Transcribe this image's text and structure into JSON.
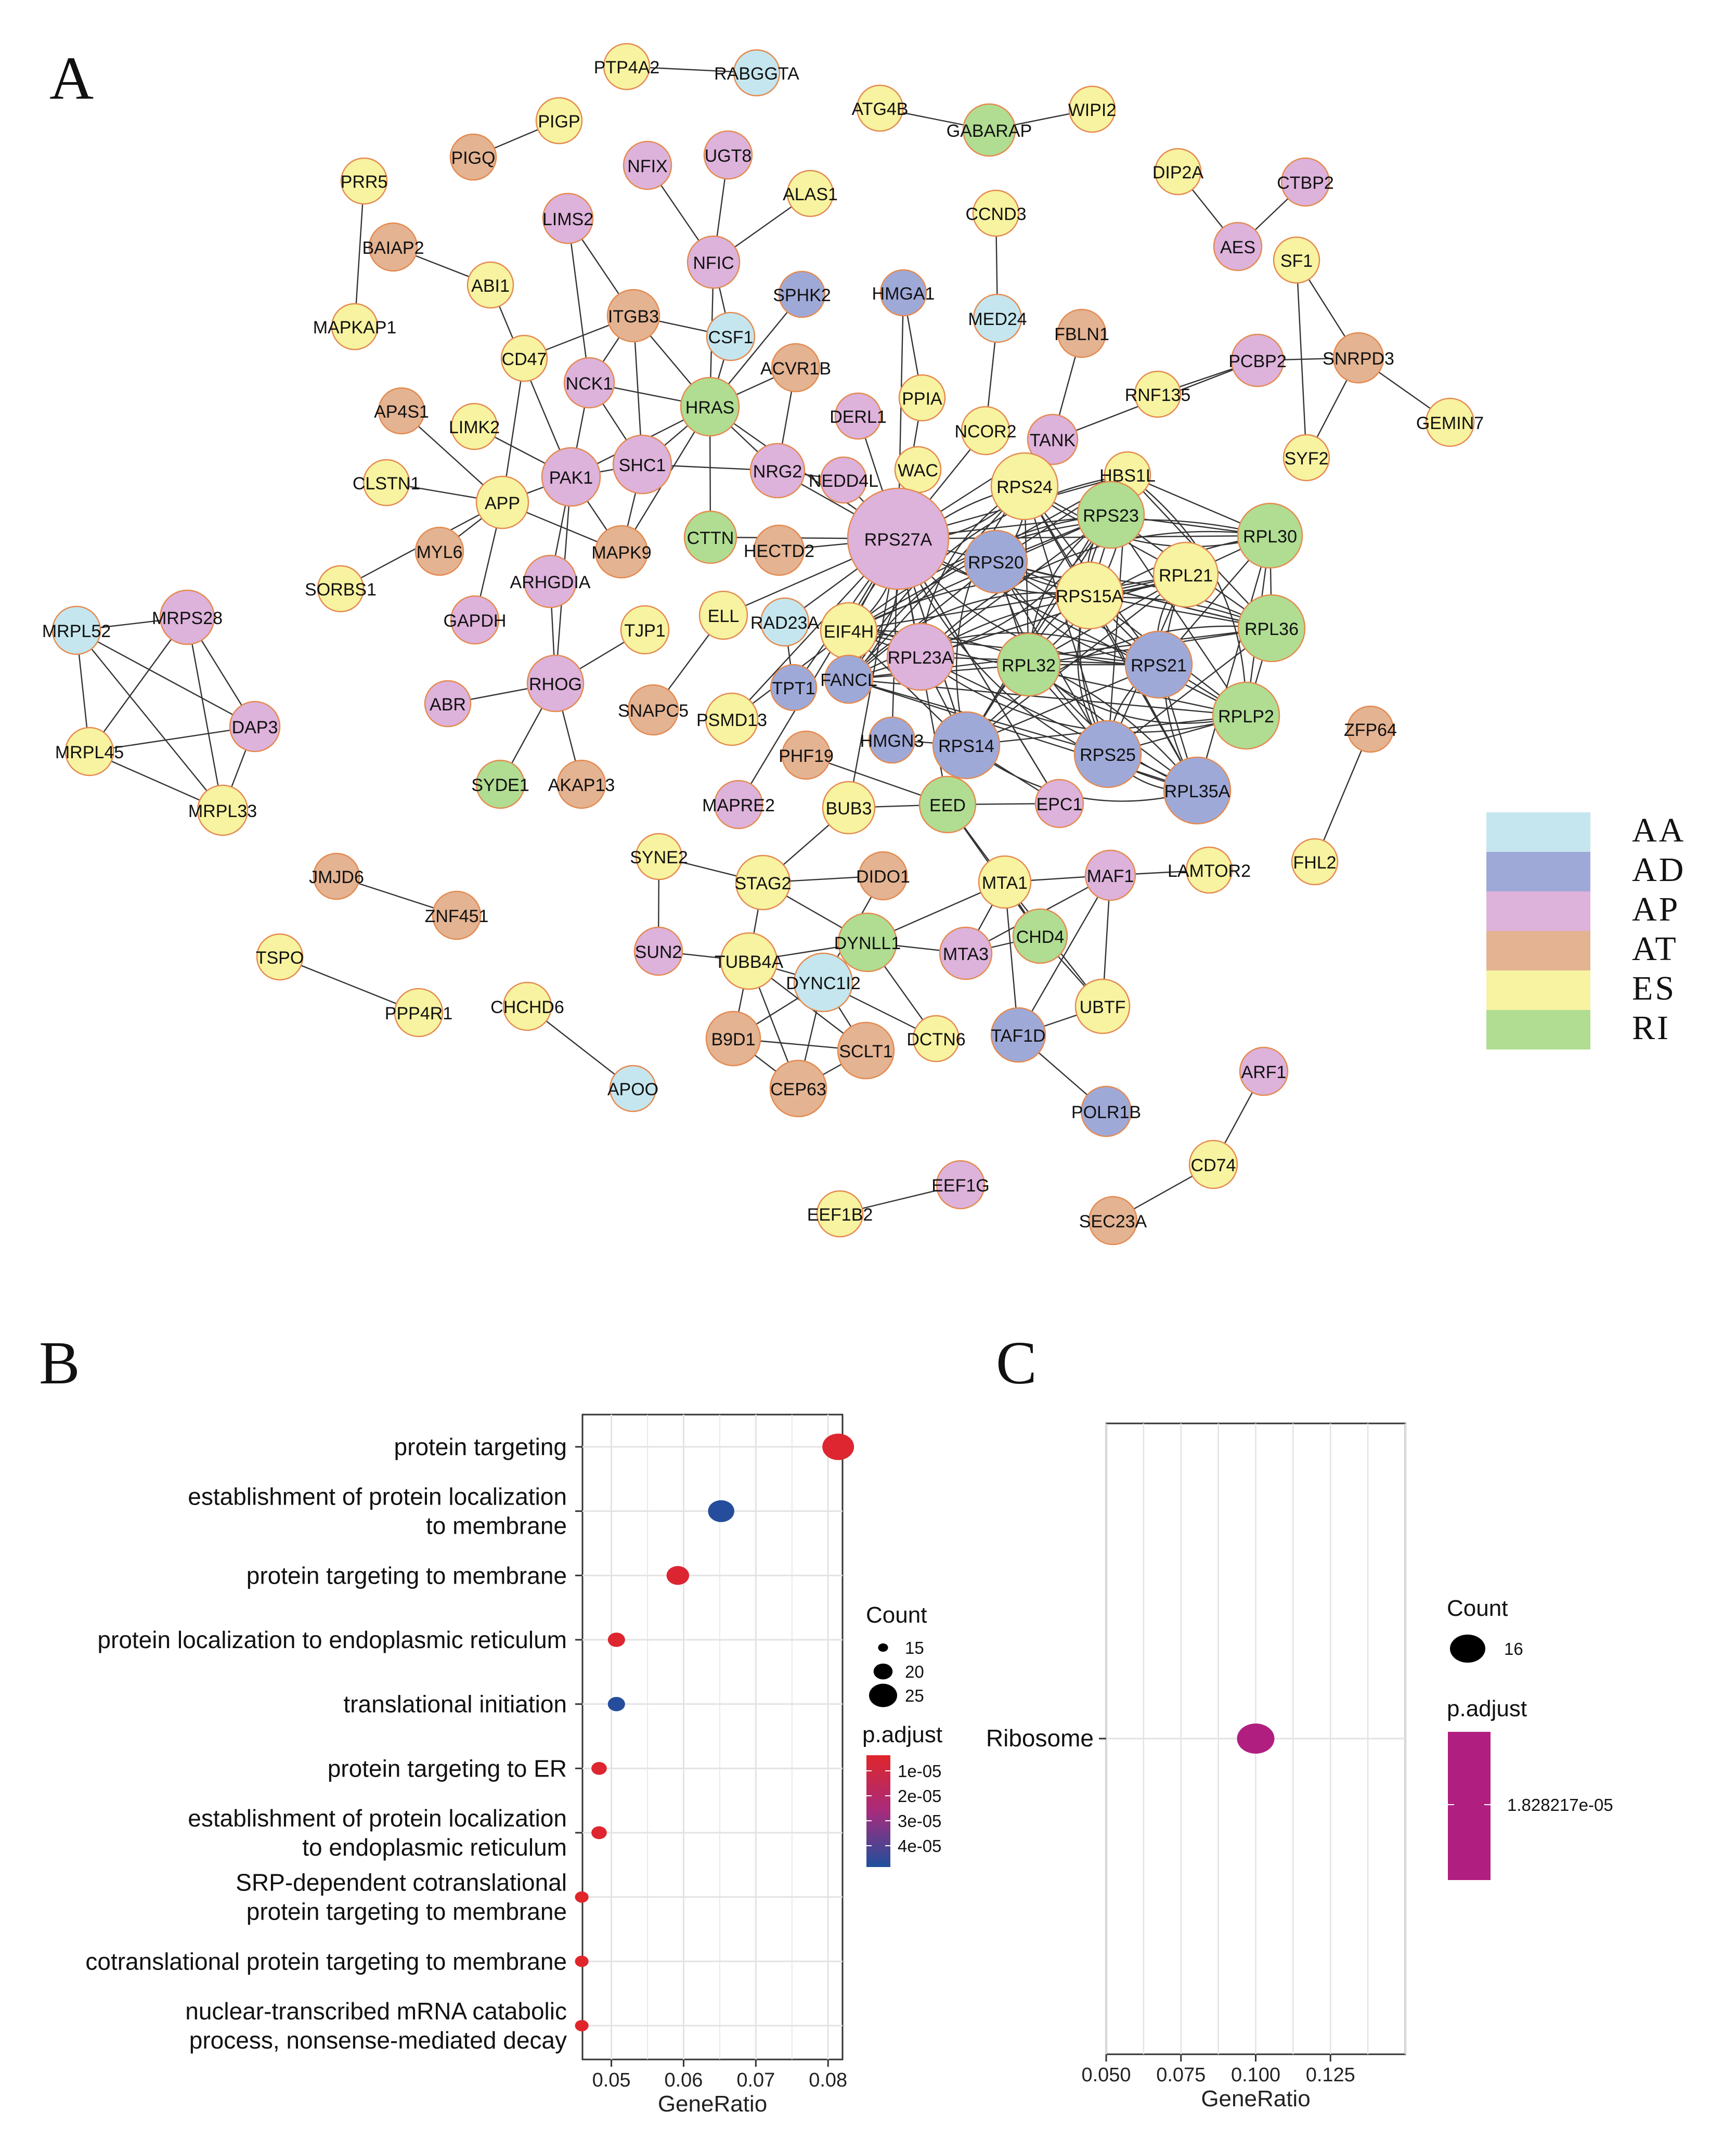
{
  "colors": {
    "AA": "#c5e6ee",
    "AD": "#9fa9d8",
    "AP": "#ddb2db",
    "AT": "#e3b392",
    "ES": "#f7f3a0",
    "RI": "#b0dd92",
    "node_stroke": "#e58a4f",
    "edge": "#333333",
    "pval_high": "#e0262b",
    "pval_mid": "#a72b7c",
    "pval_low": "#1f4f9c",
    "kegg_dot": "#b01f80",
    "grid": "#e3e3e3",
    "panel_border": "#333333"
  },
  "panel_letters": {
    "a": "A",
    "b": "B",
    "c": "C"
  },
  "network": {
    "legend": [
      {
        "key": "AA",
        "label": "AA"
      },
      {
        "key": "AD",
        "label": "AD"
      },
      {
        "key": "AP",
        "label": "AP"
      },
      {
        "key": "AT",
        "label": "AT"
      },
      {
        "key": "ES",
        "label": "ES"
      },
      {
        "key": "RI",
        "label": "RI"
      }
    ],
    "nodes": [
      {
        "id": "PTP4A2",
        "cat": "ES"
      },
      {
        "id": "RABGGTA",
        "cat": "AA"
      },
      {
        "id": "PIGP",
        "cat": "ES"
      },
      {
        "id": "PIGQ",
        "cat": "AT"
      },
      {
        "id": "ATG4B",
        "cat": "ES"
      },
      {
        "id": "GABARAP",
        "cat": "RI"
      },
      {
        "id": "WIPI2",
        "cat": "ES"
      },
      {
        "id": "DIP2A",
        "cat": "ES"
      },
      {
        "id": "CTBP2",
        "cat": "AP"
      },
      {
        "id": "AES",
        "cat": "AP"
      },
      {
        "id": "SF1",
        "cat": "ES"
      },
      {
        "id": "SNRPD3",
        "cat": "AT"
      },
      {
        "id": "PCBP2",
        "cat": "AP"
      },
      {
        "id": "SYF2",
        "cat": "ES"
      },
      {
        "id": "GEMIN7",
        "cat": "ES"
      },
      {
        "id": "RNF135",
        "cat": "ES"
      },
      {
        "id": "PRR5",
        "cat": "ES"
      },
      {
        "id": "MAPKAP1",
        "cat": "ES"
      },
      {
        "id": "BAIAP2",
        "cat": "AT"
      },
      {
        "id": "ABI1",
        "cat": "ES"
      },
      {
        "id": "NFIX",
        "cat": "AP"
      },
      {
        "id": "UGT8",
        "cat": "AP"
      },
      {
        "id": "NFIC",
        "cat": "AP"
      },
      {
        "id": "ALAS1",
        "cat": "ES"
      },
      {
        "id": "LIMS2",
        "cat": "AP"
      },
      {
        "id": "SPHK2",
        "cat": "AD"
      },
      {
        "id": "HMGA1",
        "cat": "AD"
      },
      {
        "id": "CCND3",
        "cat": "ES"
      },
      {
        "id": "MED24",
        "cat": "AA"
      },
      {
        "id": "FBLN1",
        "cat": "AT"
      },
      {
        "id": "ITGB3",
        "cat": "AT"
      },
      {
        "id": "CSF1",
        "cat": "AA"
      },
      {
        "id": "CD47",
        "cat": "ES"
      },
      {
        "id": "ACVR1B",
        "cat": "AT"
      },
      {
        "id": "NCK1",
        "cat": "AP"
      },
      {
        "id": "HRAS",
        "cat": "RI"
      },
      {
        "id": "PPIA",
        "cat": "ES"
      },
      {
        "id": "DERL1",
        "cat": "AP"
      },
      {
        "id": "NCOR2",
        "cat": "ES"
      },
      {
        "id": "TANK",
        "cat": "AP"
      },
      {
        "id": "AP4S1",
        "cat": "AT"
      },
      {
        "id": "LIMK2",
        "cat": "ES"
      },
      {
        "id": "PAK1",
        "cat": "AP"
      },
      {
        "id": "SHC1",
        "cat": "AP"
      },
      {
        "id": "NRG2",
        "cat": "AP"
      },
      {
        "id": "NEDD4L",
        "cat": "AP"
      },
      {
        "id": "WAC",
        "cat": "ES"
      },
      {
        "id": "CLSTN1",
        "cat": "ES"
      },
      {
        "id": "APP",
        "cat": "ES"
      },
      {
        "id": "RPS24",
        "cat": "ES"
      },
      {
        "id": "HBS1L",
        "cat": "ES"
      },
      {
        "id": "RPS23",
        "cat": "RI"
      },
      {
        "id": "RPL30",
        "cat": "RI"
      },
      {
        "id": "MYL6",
        "cat": "AT"
      },
      {
        "id": "MAPK9",
        "cat": "AT"
      },
      {
        "id": "CTTN",
        "cat": "RI"
      },
      {
        "id": "HECTD2",
        "cat": "AT"
      },
      {
        "id": "RPS27A",
        "cat": "AP"
      },
      {
        "id": "RPS20",
        "cat": "AD"
      },
      {
        "id": "RPS15A",
        "cat": "ES"
      },
      {
        "id": "RPL21",
        "cat": "ES"
      },
      {
        "id": "SORBS1",
        "cat": "ES"
      },
      {
        "id": "ARHGDIA",
        "cat": "AP"
      },
      {
        "id": "GAPDH",
        "cat": "AP"
      },
      {
        "id": "MRPL52",
        "cat": "AA"
      },
      {
        "id": "MRPS28",
        "cat": "AP"
      },
      {
        "id": "TJP1",
        "cat": "ES"
      },
      {
        "id": "ELL",
        "cat": "ES"
      },
      {
        "id": "RAD23A",
        "cat": "AA"
      },
      {
        "id": "EIF4H",
        "cat": "ES"
      },
      {
        "id": "RPL36",
        "cat": "RI"
      },
      {
        "id": "RHOG",
        "cat": "AP"
      },
      {
        "id": "RPL23A",
        "cat": "AP"
      },
      {
        "id": "RPL32",
        "cat": "RI"
      },
      {
        "id": "RPS21",
        "cat": "AD"
      },
      {
        "id": "TPT1",
        "cat": "AD"
      },
      {
        "id": "FANCL",
        "cat": "AD"
      },
      {
        "id": "ABR",
        "cat": "AP"
      },
      {
        "id": "DAP3",
        "cat": "AP"
      },
      {
        "id": "SNAPC5",
        "cat": "AT"
      },
      {
        "id": "PSMD13",
        "cat": "ES"
      },
      {
        "id": "RPLP2",
        "cat": "RI"
      },
      {
        "id": "ZFP64",
        "cat": "AT"
      },
      {
        "id": "MRPL45",
        "cat": "ES"
      },
      {
        "id": "SYDE1",
        "cat": "RI"
      },
      {
        "id": "AKAP13",
        "cat": "AT"
      },
      {
        "id": "PHF19",
        "cat": "AT"
      },
      {
        "id": "HMGN3",
        "cat": "AD"
      },
      {
        "id": "RPS14",
        "cat": "AD"
      },
      {
        "id": "RPS25",
        "cat": "AD"
      },
      {
        "id": "RPL35A",
        "cat": "AD"
      },
      {
        "id": "MRPL33",
        "cat": "ES"
      },
      {
        "id": "MAPRE2",
        "cat": "AP"
      },
      {
        "id": "BUB3",
        "cat": "ES"
      },
      {
        "id": "EED",
        "cat": "RI"
      },
      {
        "id": "EPC1",
        "cat": "AP"
      },
      {
        "id": "FHL2",
        "cat": "ES"
      },
      {
        "id": "JMJD6",
        "cat": "AT"
      },
      {
        "id": "SYNE2",
        "cat": "ES"
      },
      {
        "id": "ZNF451",
        "cat": "AT"
      },
      {
        "id": "STAG2",
        "cat": "ES"
      },
      {
        "id": "DIDO1",
        "cat": "AT"
      },
      {
        "id": "MTA1",
        "cat": "ES"
      },
      {
        "id": "MAF1",
        "cat": "AP"
      },
      {
        "id": "LAMTOR2",
        "cat": "ES"
      },
      {
        "id": "TSPO",
        "cat": "ES"
      },
      {
        "id": "SUN2",
        "cat": "AP"
      },
      {
        "id": "TUBB4A",
        "cat": "ES"
      },
      {
        "id": "DYNLL1",
        "cat": "RI"
      },
      {
        "id": "CHD4",
        "cat": "RI"
      },
      {
        "id": "MTA3",
        "cat": "AP"
      },
      {
        "id": "DYNC1I2",
        "cat": "AA"
      },
      {
        "id": "PPP4R1",
        "cat": "ES"
      },
      {
        "id": "CHCHD6",
        "cat": "ES"
      },
      {
        "id": "UBTF",
        "cat": "ES"
      },
      {
        "id": "B9D1",
        "cat": "AT"
      },
      {
        "id": "DCTN6",
        "cat": "ES"
      },
      {
        "id": "TAF1D",
        "cat": "AD"
      },
      {
        "id": "SCLT1",
        "cat": "AT"
      },
      {
        "id": "ARF1",
        "cat": "AP"
      },
      {
        "id": "APOO",
        "cat": "AA"
      },
      {
        "id": "CEP63",
        "cat": "AT"
      },
      {
        "id": "POLR1B",
        "cat": "AD"
      },
      {
        "id": "CD74",
        "cat": "ES"
      },
      {
        "id": "EEF1G",
        "cat": "AP"
      },
      {
        "id": "EEF1B2",
        "cat": "ES"
      },
      {
        "id": "SEC23A",
        "cat": "AT"
      }
    ]
  },
  "chart_data": [
    {
      "panel": "B",
      "type": "scatter",
      "title": "",
      "xlabel": "GeneRatio",
      "ylabel": "",
      "xlim": [
        0.046,
        0.082
      ],
      "xticks": [
        "0.05",
        "0.06",
        "0.07",
        "0.08"
      ],
      "xtick_values": [
        0.05,
        0.06,
        0.07,
        0.08
      ],
      "grid": true,
      "categories": [
        [
          "protein targeting"
        ],
        [
          "establishment of protein localization",
          "to membrane"
        ],
        [
          "protein targeting to membrane"
        ],
        [
          "protein localization to endoplasmic reticulum"
        ],
        [
          "translational initiation"
        ],
        [
          "protein targeting to ER"
        ],
        [
          "establishment of protein localization",
          "to endoplasmic reticulum"
        ],
        [
          "SRP-dependent cotranslational",
          "protein targeting to membrane"
        ],
        [
          "cotranslational protein targeting to membrane"
        ],
        [
          "nuclear-transcribed mRNA catabolic",
          "process, nonsense-mediated decay"
        ]
      ],
      "gene_ratio": [
        0.0814,
        0.0652,
        0.0592,
        0.0507,
        0.0507,
        0.0483,
        0.0483,
        0.0459,
        0.0459,
        0.0459
      ],
      "count": [
        27,
        24,
        22,
        19,
        19,
        18,
        18,
        17,
        17,
        17
      ],
      "p_adjust": [
        3e-06,
        4.5e-05,
        4e-06,
        3e-06,
        4.5e-05,
        3e-06,
        3e-06,
        2e-06,
        2e-06,
        2e-06
      ],
      "legend_count": {
        "title": "Count",
        "items": [
          "15",
          "20",
          "25"
        ],
        "values": [
          15,
          20,
          25
        ]
      },
      "legend_p": {
        "title": "p.adjust",
        "items": [
          "1e-05",
          "2e-05",
          "3e-05",
          "4e-05"
        ]
      }
    },
    {
      "panel": "C",
      "type": "scatter",
      "title": "",
      "xlabel": "GeneRatio",
      "ylabel": "",
      "xlim": [
        0.05,
        0.15
      ],
      "xticks": [
        "0.050",
        "0.075",
        "0.100",
        "0.125"
      ],
      "xtick_values": [
        0.05,
        0.075,
        0.1,
        0.125
      ],
      "grid": true,
      "categories": [
        "Ribosome"
      ],
      "gene_ratio": [
        0.1
      ],
      "count": [
        16
      ],
      "p_adjust": [
        1.828217e-05
      ],
      "legend_count": {
        "title": "Count",
        "items": [
          "16"
        ]
      },
      "legend_p": {
        "title": "p.adjust",
        "items": [
          "1.828217e-05"
        ]
      }
    }
  ]
}
